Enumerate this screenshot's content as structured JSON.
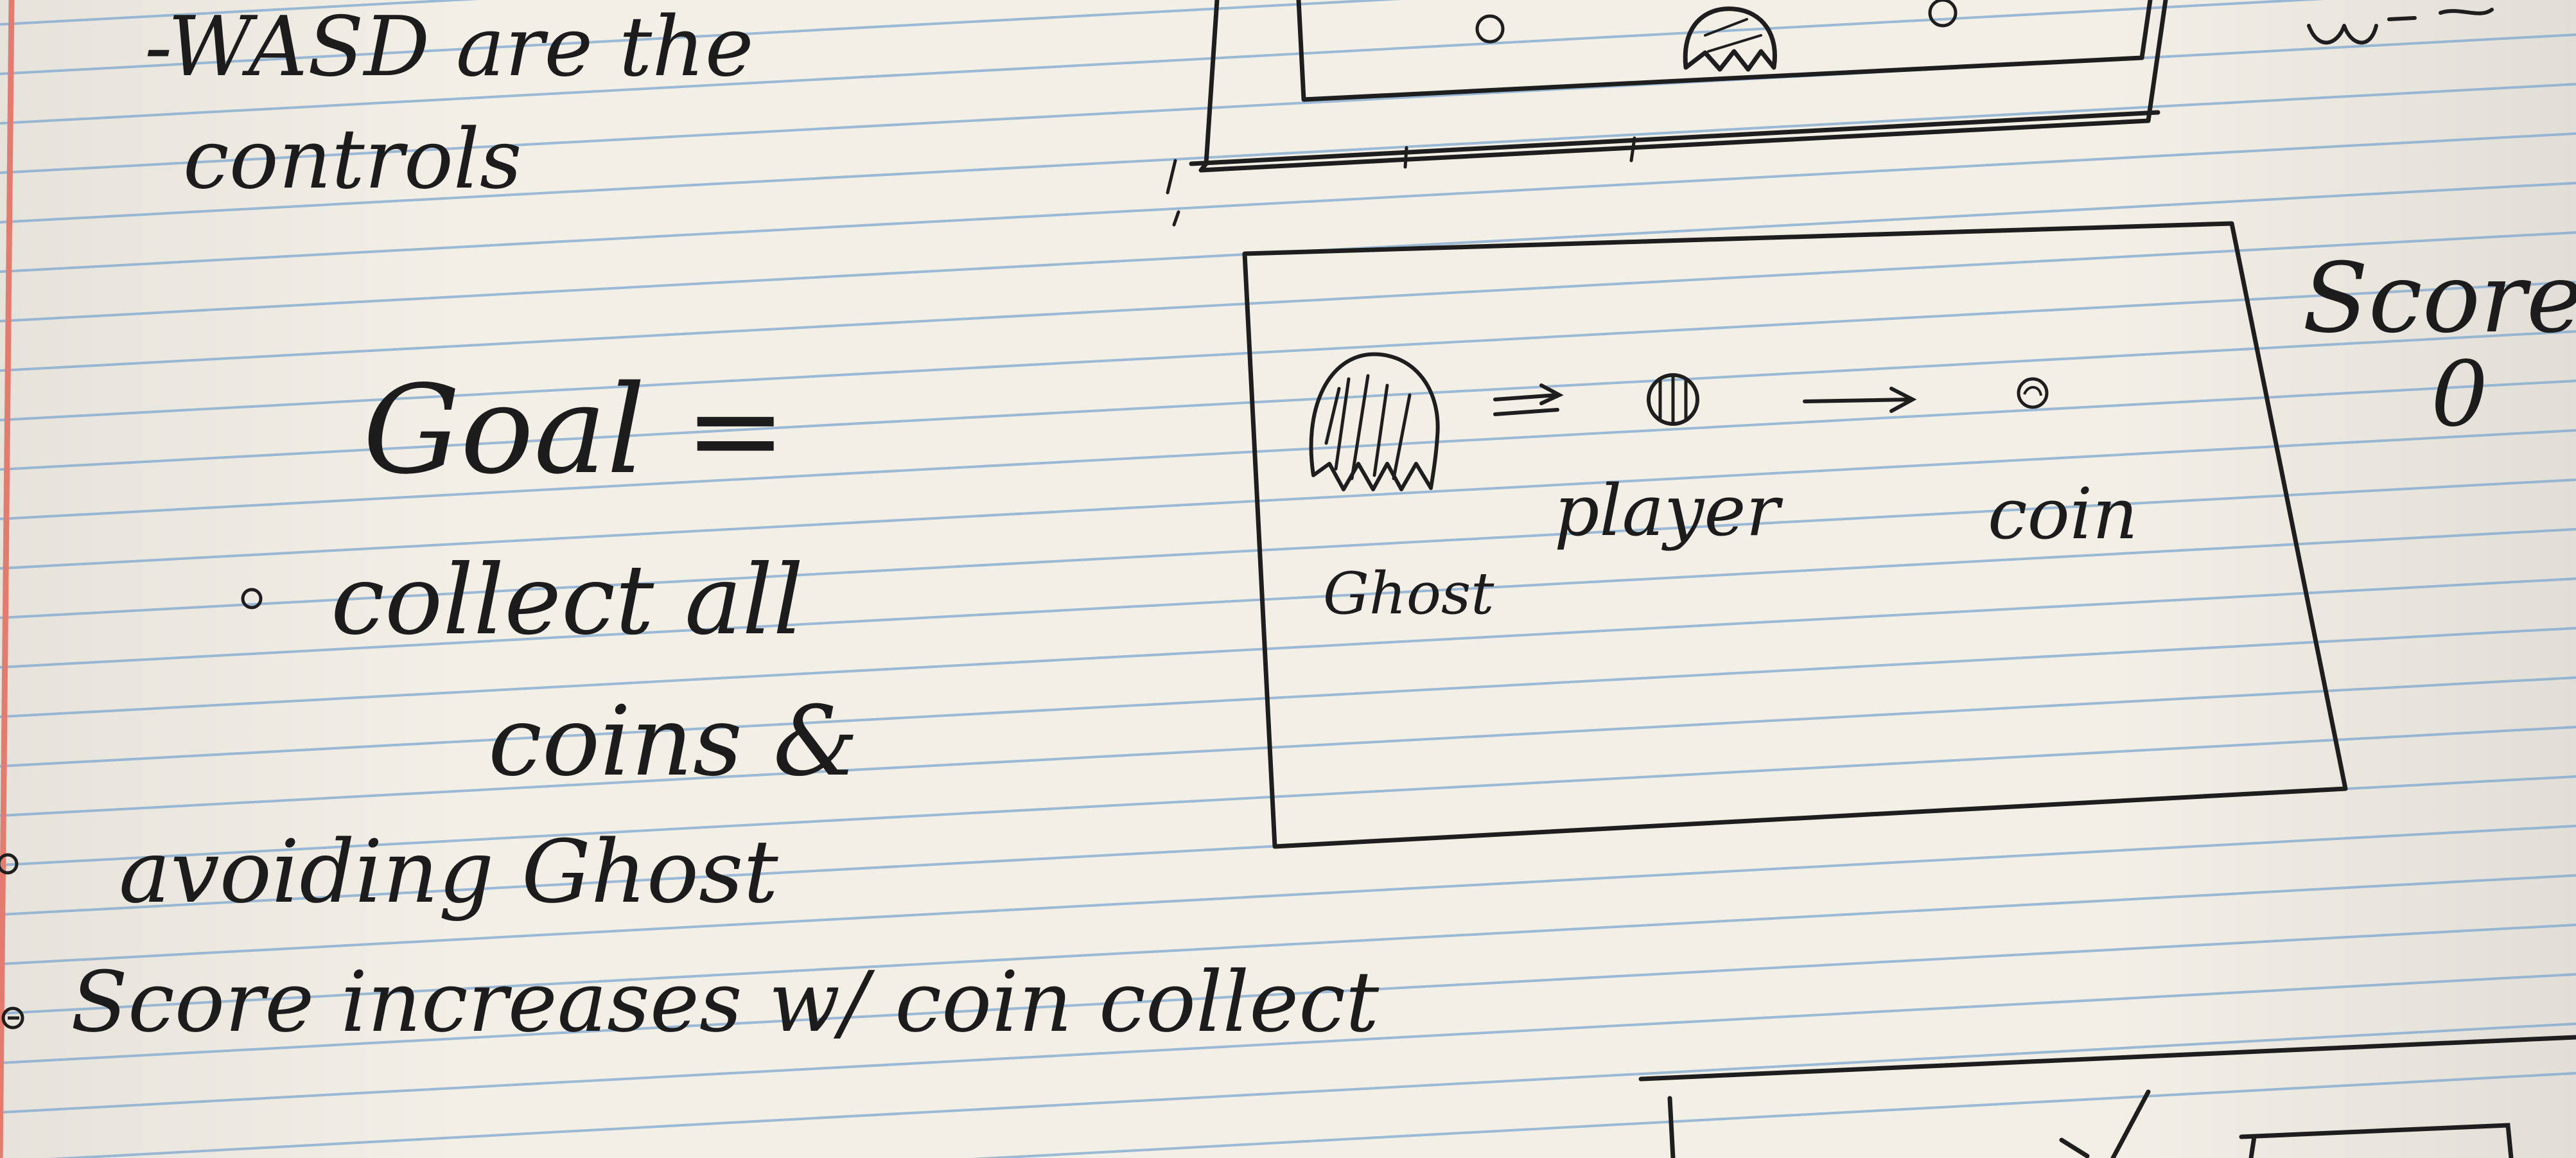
{
  "notes": {
    "line1": "-WASD are the",
    "line2": "controls",
    "goal": "Goal =",
    "bullet1a": "collect all",
    "bullet1b": "coins &",
    "bullet2": "avoiding Ghost",
    "bullet3": "Score increases w/ coin collect"
  },
  "sketch": {
    "score_label": "Score",
    "score_value": "0",
    "ghost_label": "Ghost",
    "player_label": "player",
    "coin_label": "coin"
  },
  "paper": {
    "rule_color": "#7ea7cf",
    "margin_color": "#e37b6f",
    "ink_color": "#1c1c1c"
  }
}
